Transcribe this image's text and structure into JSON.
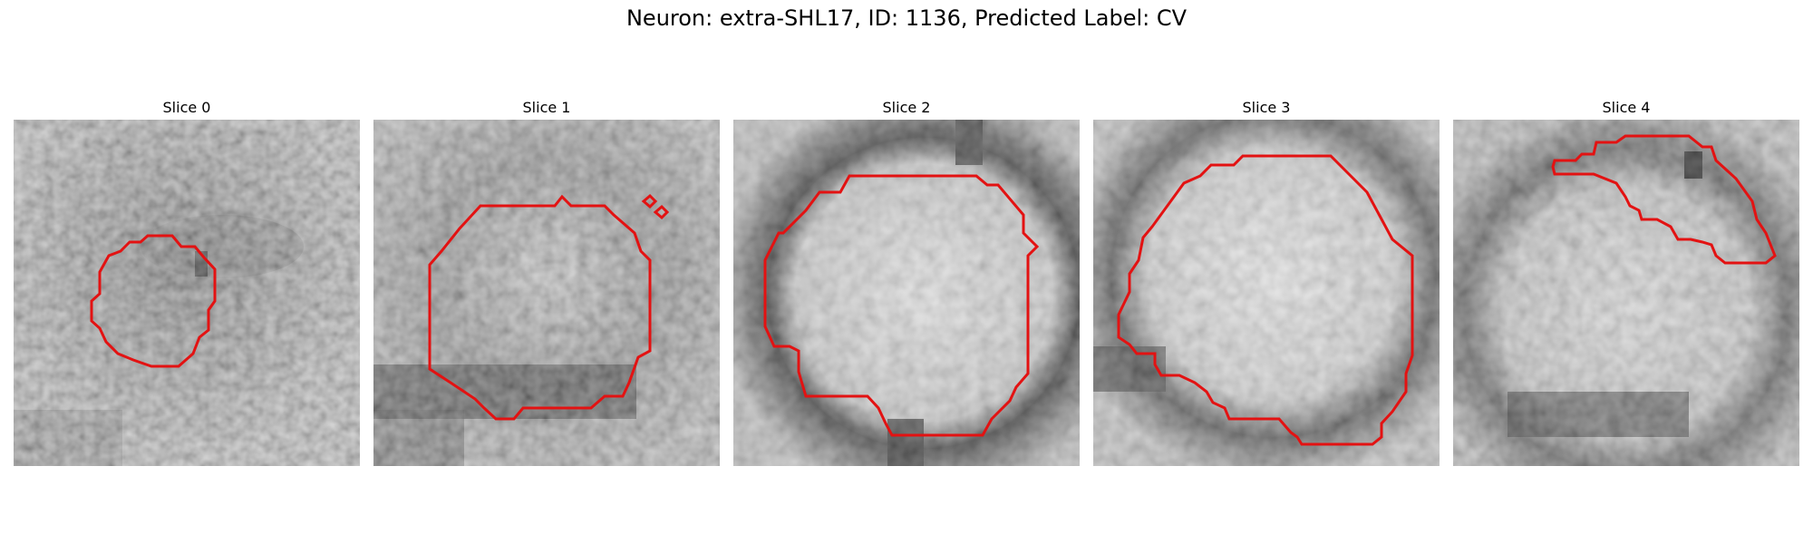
{
  "figure": {
    "title": "Neuron: extra-SHL17, ID: 1136, Predicted Label: CV"
  },
  "contour_color": "#e31212",
  "panels": [
    {
      "title": "Slice 0"
    },
    {
      "title": "Slice 1"
    },
    {
      "title": "Slice 2"
    },
    {
      "title": "Slice 3"
    },
    {
      "title": "Slice 4"
    }
  ]
}
